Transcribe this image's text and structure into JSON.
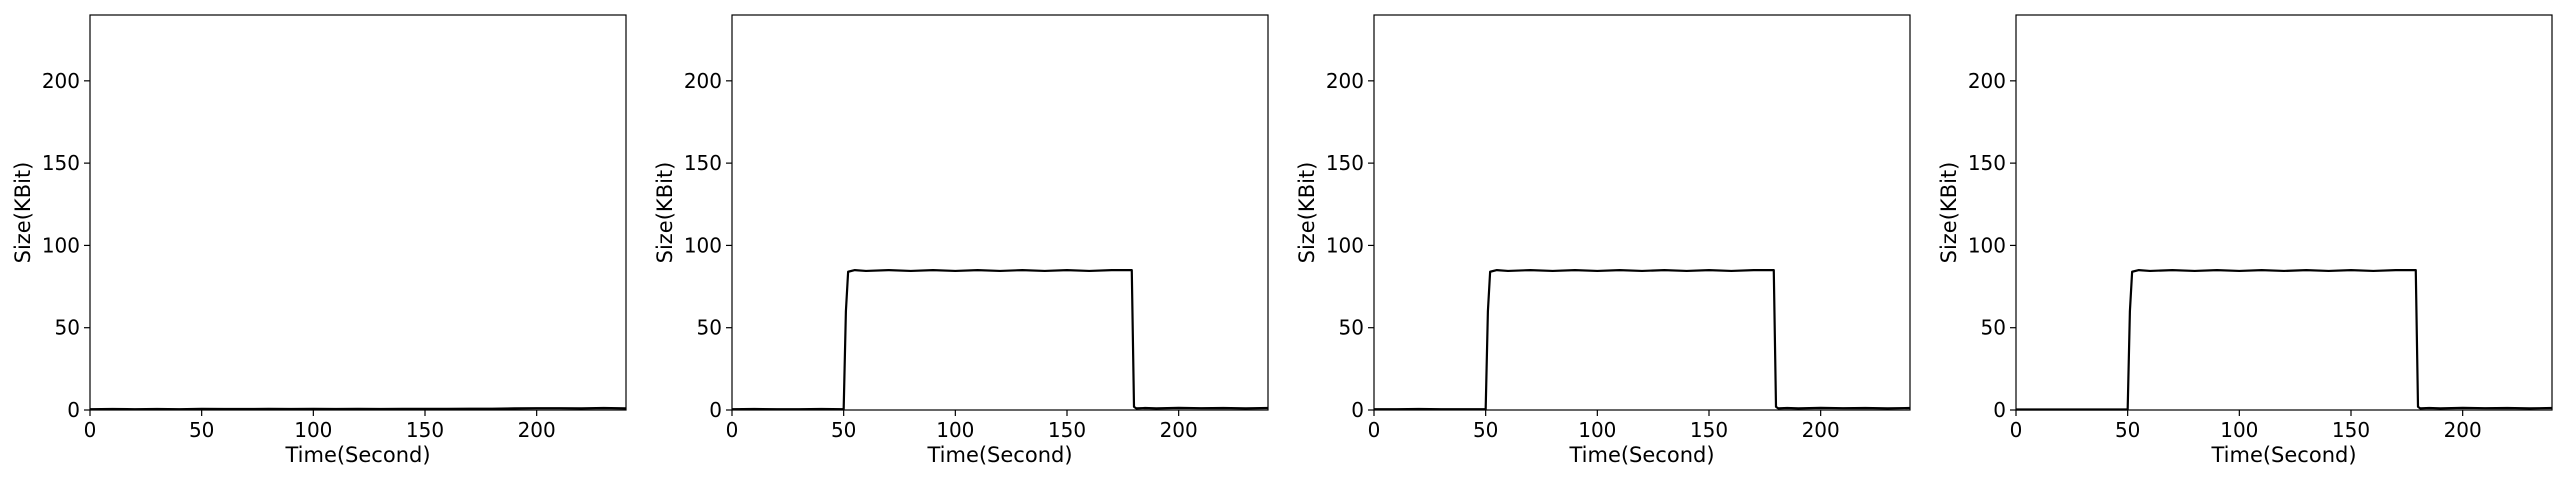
{
  "figure": {
    "panel_count": 4
  },
  "colors": {
    "line": "#000000",
    "axes": "#000000",
    "background": "#ffffff"
  },
  "chart_data": [
    {
      "type": "line",
      "title": "",
      "xlabel": "Time(Second)",
      "ylabel": "Size(KBit)",
      "xlim": [
        0,
        240
      ],
      "ylim": [
        0,
        240
      ],
      "x_ticks": [
        0,
        50,
        100,
        150,
        200
      ],
      "y_ticks": [
        0,
        50,
        100,
        150,
        200
      ],
      "grid": false,
      "series": [
        {
          "x": [
            0,
            10,
            20,
            30,
            40,
            50,
            60,
            70,
            80,
            90,
            100,
            110,
            120,
            130,
            140,
            150,
            160,
            170,
            180,
            190,
            200,
            210,
            220,
            230,
            240
          ],
          "y": [
            0.5,
            0.6,
            0.5,
            0.6,
            0.5,
            0.7,
            0.6,
            0.6,
            0.7,
            0.6,
            0.7,
            0.6,
            0.7,
            0.6,
            0.7,
            0.7,
            0.7,
            0.8,
            0.8,
            1.0,
            1.1,
            1.1,
            1.0,
            1.2,
            1.0
          ]
        }
      ]
    },
    {
      "type": "line",
      "title": "",
      "xlabel": "Time(Second)",
      "ylabel": "Size(KBit)",
      "xlim": [
        0,
        240
      ],
      "ylim": [
        0,
        240
      ],
      "x_ticks": [
        0,
        50,
        100,
        150,
        200
      ],
      "y_ticks": [
        0,
        50,
        100,
        150,
        200
      ],
      "grid": false,
      "series": [
        {
          "x": [
            0,
            10,
            20,
            30,
            40,
            50,
            51,
            52,
            55,
            60,
            70,
            80,
            90,
            100,
            110,
            120,
            130,
            140,
            150,
            160,
            170,
            179,
            180,
            181,
            185,
            190,
            200,
            210,
            220,
            230,
            240
          ],
          "y": [
            0.5,
            0.6,
            0.5,
            0.5,
            0.6,
            0.5,
            60,
            84,
            85,
            84.5,
            85,
            84.5,
            85,
            84.5,
            85,
            84.5,
            85,
            84.5,
            85,
            84.5,
            85,
            85,
            2,
            1,
            1.2,
            1.0,
            1.3,
            1.1,
            1.2,
            1.0,
            1.2
          ]
        }
      ]
    },
    {
      "type": "line",
      "title": "",
      "xlabel": "Time(Second)",
      "ylabel": "Size(KBit)",
      "xlim": [
        0,
        240
      ],
      "ylim": [
        0,
        240
      ],
      "x_ticks": [
        0,
        50,
        100,
        150,
        200
      ],
      "y_ticks": [
        0,
        50,
        100,
        150,
        200
      ],
      "grid": false,
      "series": [
        {
          "x": [
            0,
            10,
            20,
            30,
            40,
            50,
            51,
            52,
            55,
            60,
            70,
            80,
            90,
            100,
            110,
            120,
            130,
            140,
            150,
            160,
            170,
            179,
            180,
            181,
            185,
            190,
            200,
            210,
            220,
            230,
            240
          ],
          "y": [
            0.5,
            0.5,
            0.6,
            0.5,
            0.5,
            0.5,
            60,
            84,
            85,
            84.5,
            85,
            84.5,
            85,
            84.5,
            85,
            84.5,
            85,
            84.5,
            85,
            84.5,
            85,
            85,
            2,
            1,
            1.2,
            1.0,
            1.3,
            1.1,
            1.2,
            1.0,
            1.2
          ]
        }
      ]
    },
    {
      "type": "line",
      "title": "",
      "xlabel": "Time(Second)",
      "ylabel": "Size(KBit)",
      "xlim": [
        0,
        240
      ],
      "ylim": [
        0,
        240
      ],
      "x_ticks": [
        0,
        50,
        100,
        150,
        200
      ],
      "y_ticks": [
        0,
        50,
        100,
        150,
        200
      ],
      "grid": false,
      "series": [
        {
          "x": [
            0,
            10,
            20,
            30,
            40,
            50,
            51,
            52,
            55,
            60,
            70,
            80,
            90,
            100,
            110,
            120,
            130,
            140,
            150,
            160,
            170,
            179,
            180,
            181,
            185,
            190,
            200,
            210,
            220,
            230,
            240
          ],
          "y": [
            0.3,
            0.3,
            0.3,
            0.3,
            0.3,
            0.3,
            60,
            84,
            85,
            84.5,
            85,
            84.5,
            85,
            84.5,
            85,
            84.5,
            85,
            84.5,
            85,
            84.5,
            85,
            85,
            2,
            1,
            1.2,
            1.0,
            1.3,
            1.1,
            1.2,
            1.0,
            1.2
          ]
        }
      ]
    }
  ]
}
